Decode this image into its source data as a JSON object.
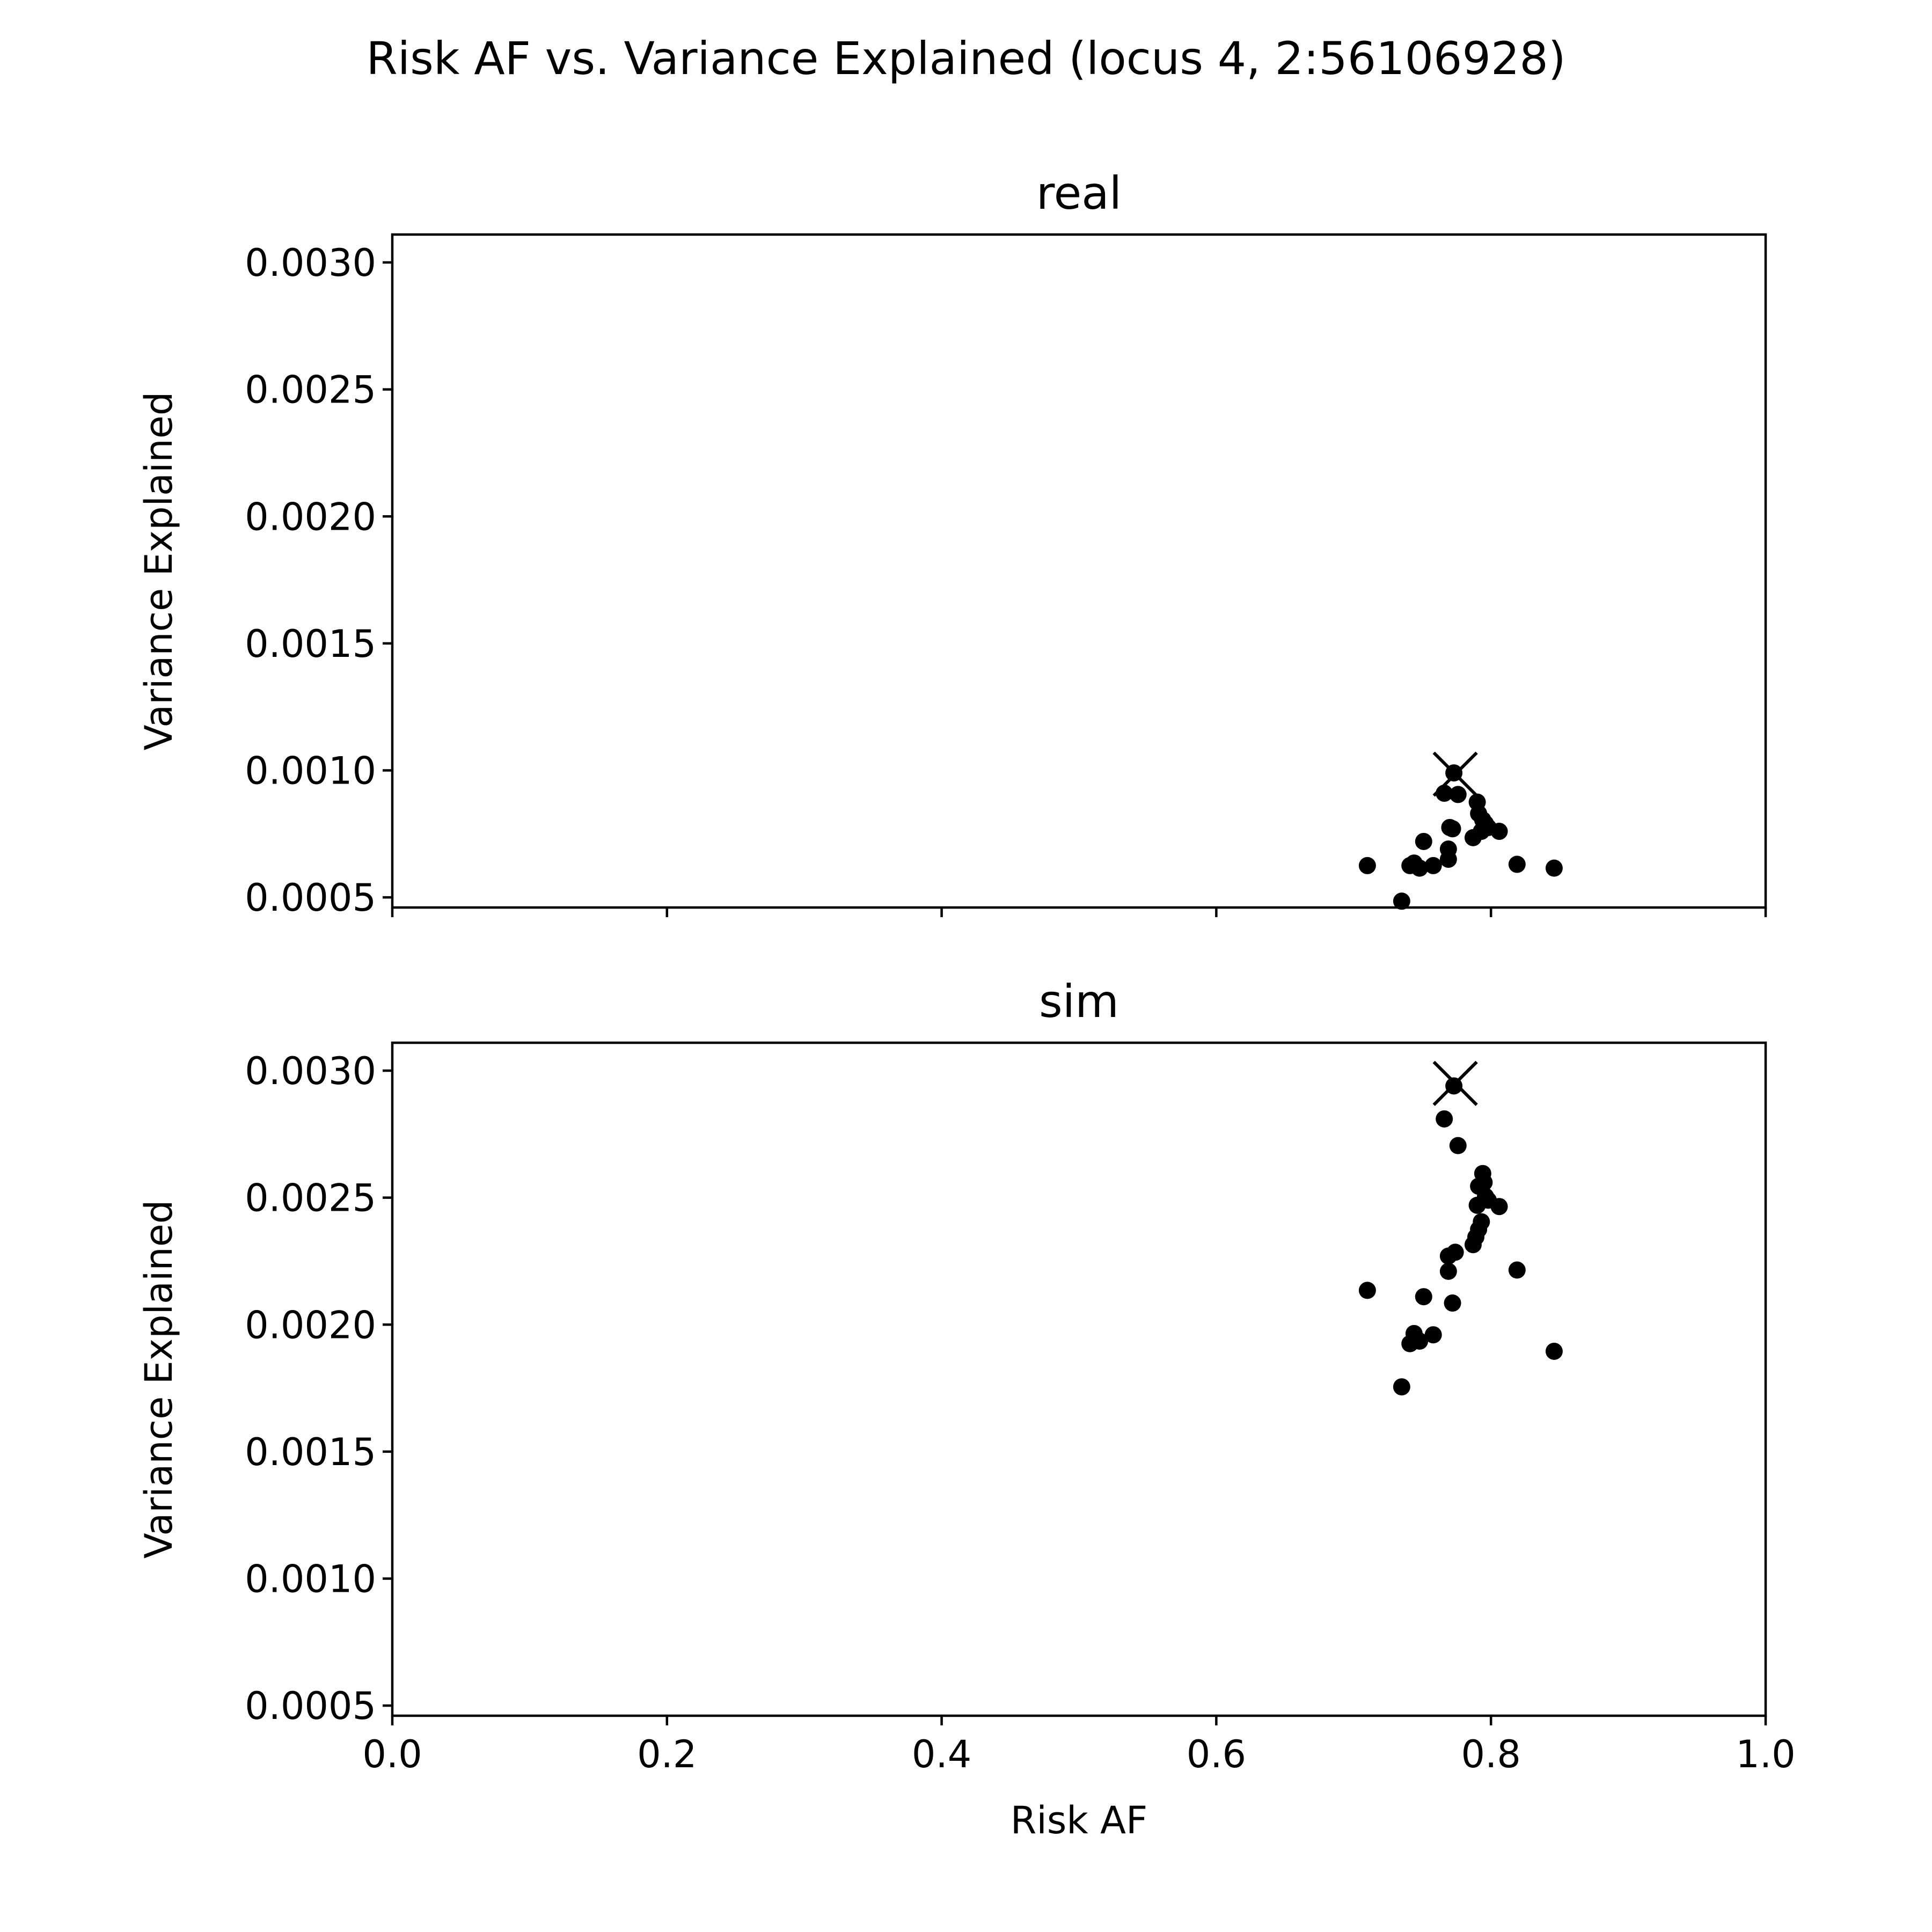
{
  "chart_data": {
    "title": "Risk AF vs. Variance Explained (locus 4, 2:56106928)",
    "type": "scatter",
    "xlabel": "Risk AF",
    "xlim": [
      0.0,
      1.0
    ],
    "xticks": [
      "0.0",
      "0.2",
      "0.4",
      "0.6",
      "0.8",
      "1.0"
    ],
    "xtick_values": [
      0.0,
      0.2,
      0.4,
      0.6,
      0.8,
      1.0
    ],
    "sharex": true,
    "panels": [
      {
        "title": "real",
        "ylabel": "Variance Explained",
        "ylim": [
          0.00046,
          0.00311
        ],
        "yticks": [
          "0.0005",
          "0.0010",
          "0.0015",
          "0.0020",
          "0.0025",
          "0.0030"
        ],
        "ytick_values": [
          0.0005,
          0.001,
          0.0015,
          0.002,
          0.0025,
          0.003
        ],
        "points": [
          {
            "x": 0.71,
            "y": 0.000625
          },
          {
            "x": 0.735,
            "y": 0.000485
          },
          {
            "x": 0.741,
            "y": 0.000625
          },
          {
            "x": 0.744,
            "y": 0.000635
          },
          {
            "x": 0.748,
            "y": 0.000615
          },
          {
            "x": 0.751,
            "y": 0.00072
          },
          {
            "x": 0.758,
            "y": 0.000625
          },
          {
            "x": 0.766,
            "y": 0.00091
          },
          {
            "x": 0.769,
            "y": 0.00069
          },
          {
            "x": 0.769,
            "y": 0.00065
          },
          {
            "x": 0.77,
            "y": 0.000775
          },
          {
            "x": 0.772,
            "y": 0.00077
          },
          {
            "x": 0.773,
            "y": 0.00099
          },
          {
            "x": 0.776,
            "y": 0.000905
          },
          {
            "x": 0.787,
            "y": 0.000735
          },
          {
            "x": 0.79,
            "y": 0.000875
          },
          {
            "x": 0.791,
            "y": 0.00083
          },
          {
            "x": 0.793,
            "y": 0.00076
          },
          {
            "x": 0.794,
            "y": 0.000805
          },
          {
            "x": 0.796,
            "y": 0.00079
          },
          {
            "x": 0.798,
            "y": 0.000775
          },
          {
            "x": 0.806,
            "y": 0.00076
          },
          {
            "x": 0.819,
            "y": 0.00063
          },
          {
            "x": 0.846,
            "y": 0.000615
          }
        ],
        "marker_x": {
          "x": 0.774,
          "y": 0.000985
        }
      },
      {
        "title": "sim",
        "ylabel": "Variance Explained",
        "ylim": [
          0.00046,
          0.00311
        ],
        "yticks": [
          "0.0005",
          "0.0010",
          "0.0015",
          "0.0020",
          "0.0025",
          "0.0030"
        ],
        "ytick_values": [
          0.0005,
          0.001,
          0.0015,
          0.002,
          0.0025,
          0.003
        ],
        "points": [
          {
            "x": 0.71,
            "y": 0.002135
          },
          {
            "x": 0.735,
            "y": 0.001755
          },
          {
            "x": 0.741,
            "y": 0.001925
          },
          {
            "x": 0.744,
            "y": 0.001965
          },
          {
            "x": 0.748,
            "y": 0.001935
          },
          {
            "x": 0.751,
            "y": 0.00211
          },
          {
            "x": 0.758,
            "y": 0.00196
          },
          {
            "x": 0.766,
            "y": 0.00281
          },
          {
            "x": 0.769,
            "y": 0.00227
          },
          {
            "x": 0.769,
            "y": 0.00221
          },
          {
            "x": 0.772,
            "y": 0.002085
          },
          {
            "x": 0.773,
            "y": 0.00294
          },
          {
            "x": 0.774,
            "y": 0.002285
          },
          {
            "x": 0.776,
            "y": 0.002705
          },
          {
            "x": 0.787,
            "y": 0.002315
          },
          {
            "x": 0.789,
            "y": 0.002345
          },
          {
            "x": 0.79,
            "y": 0.00247
          },
          {
            "x": 0.791,
            "y": 0.002375
          },
          {
            "x": 0.791,
            "y": 0.002545
          },
          {
            "x": 0.793,
            "y": 0.002405
          },
          {
            "x": 0.794,
            "y": 0.002595
          },
          {
            "x": 0.795,
            "y": 0.00256
          },
          {
            "x": 0.796,
            "y": 0.002505
          },
          {
            "x": 0.798,
            "y": 0.00249
          },
          {
            "x": 0.806,
            "y": 0.002465
          },
          {
            "x": 0.819,
            "y": 0.002215
          },
          {
            "x": 0.846,
            "y": 0.001895
          }
        ],
        "marker_x": {
          "x": 0.774,
          "y": 0.00295
        }
      }
    ]
  }
}
